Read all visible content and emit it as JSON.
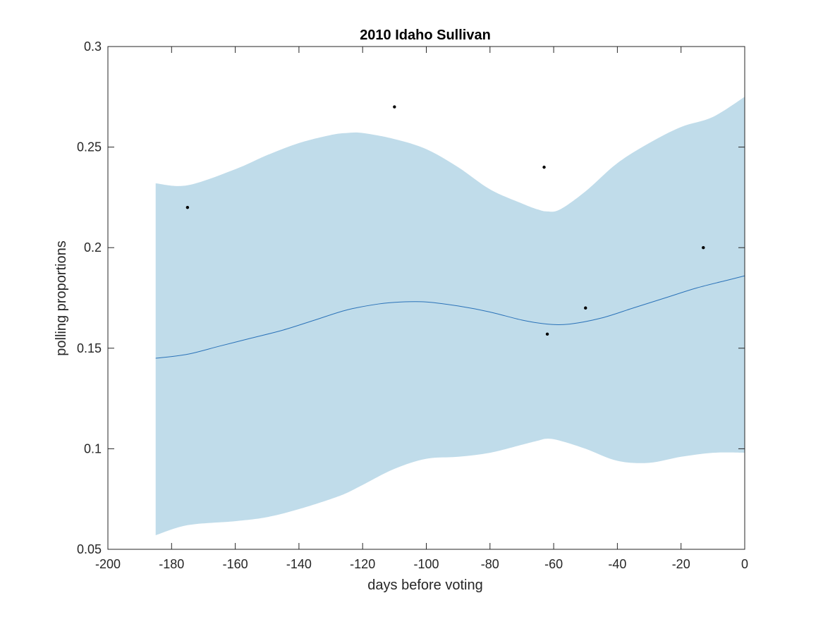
{
  "chart_data": {
    "type": "line",
    "title": "2010 Idaho Sullivan",
    "xlabel": "days before voting",
    "ylabel": "polling proportions",
    "xlim": [
      -200,
      0
    ],
    "ylim": [
      0.05,
      0.3
    ],
    "xticks": [
      -200,
      -180,
      -160,
      -140,
      -120,
      -100,
      -80,
      -60,
      -40,
      -20,
      0
    ],
    "yticks": [
      0.05,
      0.1,
      0.15,
      0.2,
      0.25,
      0.3
    ],
    "xtick_labels": [
      "-200",
      "-180",
      "-160",
      "-140",
      "-120",
      "-100",
      "-80",
      "-60",
      "-40",
      "-20",
      "0"
    ],
    "ytick_labels": [
      "0.05",
      "0.1",
      "0.15",
      "0.2",
      "0.25",
      "0.3"
    ],
    "grid": false,
    "colors": {
      "band": "#c0dcea",
      "line": "#2a72b8",
      "points": "#000000",
      "axes": "#262626"
    },
    "band": {
      "x": [
        -185,
        -175,
        -160,
        -150,
        -140,
        -130,
        -125,
        -120,
        -110,
        -100,
        -90,
        -80,
        -70,
        -65,
        -62,
        -58,
        -50,
        -40,
        -30,
        -20,
        -10,
        0
      ],
      "upper": [
        0.232,
        0.231,
        0.239,
        0.246,
        0.252,
        0.256,
        0.257,
        0.257,
        0.254,
        0.249,
        0.24,
        0.229,
        0.222,
        0.219,
        0.218,
        0.219,
        0.228,
        0.242,
        0.252,
        0.26,
        0.265,
        0.275
      ],
      "lower": [
        0.057,
        0.062,
        0.064,
        0.066,
        0.07,
        0.075,
        0.078,
        0.082,
        0.09,
        0.095,
        0.096,
        0.098,
        0.102,
        0.104,
        0.105,
        0.104,
        0.1,
        0.094,
        0.093,
        0.096,
        0.098,
        0.098
      ]
    },
    "mean": {
      "x": [
        -185,
        -175,
        -165,
        -155,
        -145,
        -135,
        -125,
        -115,
        -108,
        -100,
        -90,
        -80,
        -70,
        -62,
        -55,
        -45,
        -35,
        -25,
        -15,
        -5,
        0
      ],
      "y": [
        0.145,
        0.147,
        0.151,
        0.155,
        0.159,
        0.164,
        0.169,
        0.172,
        0.173,
        0.173,
        0.171,
        0.168,
        0.164,
        0.162,
        0.162,
        0.165,
        0.17,
        0.175,
        0.18,
        0.184,
        0.186
      ]
    },
    "points": [
      {
        "x": -175,
        "y": 0.22
      },
      {
        "x": -110,
        "y": 0.27
      },
      {
        "x": -63,
        "y": 0.24
      },
      {
        "x": -62,
        "y": 0.157
      },
      {
        "x": -50,
        "y": 0.17
      },
      {
        "x": -13,
        "y": 0.2
      }
    ]
  }
}
